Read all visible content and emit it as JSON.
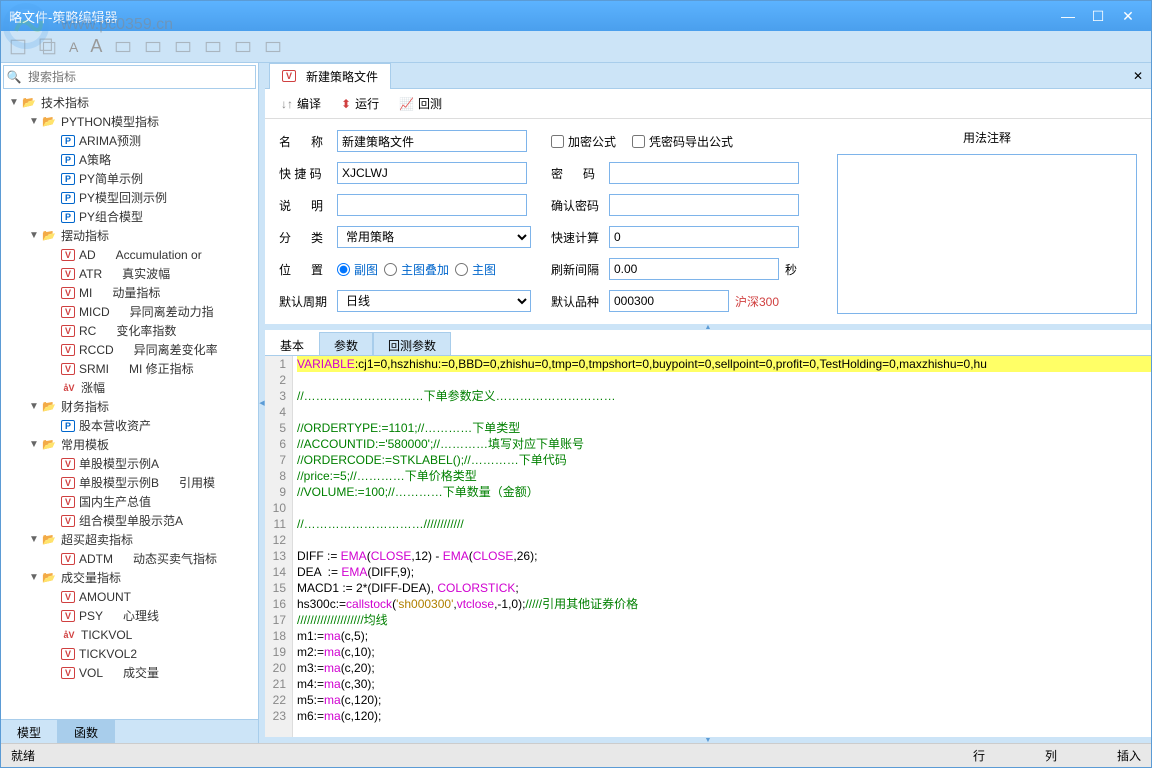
{
  "window": {
    "title": "略文件-策略编辑器",
    "watermark": "www.pc0359.cn",
    "watermark_brand": "河东软件园"
  },
  "search": {
    "placeholder": "搜索指标"
  },
  "tree": [
    {
      "level": 0,
      "arrow": "▼",
      "icon": "folder",
      "label": "技术指标"
    },
    {
      "level": 1,
      "arrow": "▼",
      "icon": "folder",
      "label": "PYTHON模型指标"
    },
    {
      "level": 2,
      "arrow": "",
      "icon": "p",
      "label": "ARIMA预测"
    },
    {
      "level": 2,
      "arrow": "",
      "icon": "p",
      "label": "A策略"
    },
    {
      "level": 2,
      "arrow": "",
      "icon": "p",
      "label": "PY简单示例"
    },
    {
      "level": 2,
      "arrow": "",
      "icon": "p",
      "label": "PY模型回测示例"
    },
    {
      "level": 2,
      "arrow": "",
      "icon": "p",
      "label": "PY组合模型"
    },
    {
      "level": 1,
      "arrow": "▼",
      "icon": "folder",
      "label": "摆动指标"
    },
    {
      "level": 2,
      "arrow": "",
      "icon": "v",
      "label": "AD",
      "extra": "Accumulation or"
    },
    {
      "level": 2,
      "arrow": "",
      "icon": "v",
      "label": "ATR",
      "extra": "真实波幅"
    },
    {
      "level": 2,
      "arrow": "",
      "icon": "v",
      "label": "MI",
      "extra": "动量指标"
    },
    {
      "level": 2,
      "arrow": "",
      "icon": "v",
      "label": "MICD",
      "extra": "异同离差动力指"
    },
    {
      "level": 2,
      "arrow": "",
      "icon": "v",
      "label": "RC",
      "extra": "变化率指数"
    },
    {
      "level": 2,
      "arrow": "",
      "icon": "v",
      "label": "RCCD",
      "extra": "异同离差变化率"
    },
    {
      "level": 2,
      "arrow": "",
      "icon": "v",
      "label": "SRMI",
      "extra": "MI 修正指标"
    },
    {
      "level": 2,
      "arrow": "",
      "icon": "av",
      "label": "涨幅"
    },
    {
      "level": 1,
      "arrow": "▼",
      "icon": "folder",
      "label": "财务指标"
    },
    {
      "level": 2,
      "arrow": "",
      "icon": "p",
      "label": "股本营收资产"
    },
    {
      "level": 1,
      "arrow": "▼",
      "icon": "folder",
      "label": "常用模板"
    },
    {
      "level": 2,
      "arrow": "",
      "icon": "v",
      "label": "单股模型示例A"
    },
    {
      "level": 2,
      "arrow": "",
      "icon": "v",
      "label": "单股模型示例B",
      "extra": "引用模"
    },
    {
      "level": 2,
      "arrow": "",
      "icon": "v",
      "label": "国内生产总值"
    },
    {
      "level": 2,
      "arrow": "",
      "icon": "v",
      "label": "组合模型单股示范A"
    },
    {
      "level": 1,
      "arrow": "▼",
      "icon": "folder",
      "label": "超买超卖指标"
    },
    {
      "level": 2,
      "arrow": "",
      "icon": "v",
      "label": "ADTM",
      "extra": "动态买卖气指标"
    },
    {
      "level": 1,
      "arrow": "▼",
      "icon": "folder",
      "label": "成交量指标"
    },
    {
      "level": 2,
      "arrow": "",
      "icon": "v",
      "label": "AMOUNT"
    },
    {
      "level": 2,
      "arrow": "",
      "icon": "v",
      "label": "PSY",
      "extra": "心理线"
    },
    {
      "level": 2,
      "arrow": "",
      "icon": "av",
      "label": "TICKVOL"
    },
    {
      "level": 2,
      "arrow": "",
      "icon": "v",
      "label": "TICKVOL2"
    },
    {
      "level": 2,
      "arrow": "",
      "icon": "v",
      "label": "VOL",
      "extra": "成交量"
    }
  ],
  "bottomTabs": {
    "model": "模型",
    "function": "函数"
  },
  "fileTab": {
    "name": "新建策略文件"
  },
  "actions": {
    "compile": "编译",
    "run": "运行",
    "backtest": "回测"
  },
  "form": {
    "name_label": "名　称",
    "name_value": "新建策略文件",
    "shortcut_label": "快 捷 码",
    "shortcut_value": "XJCLWJ",
    "desc_label": "说　明",
    "desc_value": "",
    "category_label": "分　类",
    "category_value": "常用策略",
    "position_label": "位　置",
    "period_label": "默认周期",
    "period_value": "日线",
    "encrypt": "加密公式",
    "export_pwd": "凭密码导出公式",
    "password_label": "密　码",
    "confirm_pwd_label": "确认密码",
    "fast_calc_label": "快速计算",
    "fast_calc_value": "0",
    "refresh_label": "刷新间隔",
    "refresh_value": "0.00",
    "refresh_unit": "秒",
    "default_symbol_label": "默认品种",
    "default_symbol_value": "000300",
    "default_symbol_name": "沪深300",
    "radio_sub": "副图",
    "radio_overlay": "主图叠加",
    "radio_main": "主图",
    "usage_label": "用法注释"
  },
  "codeTabs": {
    "basic": "基本",
    "params": "参数",
    "backtest_params": "回测参数"
  },
  "code": [
    {
      "n": 1,
      "hl": true,
      "html": "<span class='c-kw'>VARIABLE</span>:cj1=0,hszhishu:=0,BBD=0,zhishu=0,tmp=0,tmpshort=0,buypoint=0,sellpoint=0,profit=0,TestHolding=0,maxzhishu=0,hu"
    },
    {
      "n": 2,
      "html": ""
    },
    {
      "n": 3,
      "html": "<span class='c-comment'>//…………………………下单参数定义…………………………</span>"
    },
    {
      "n": 4,
      "html": ""
    },
    {
      "n": 5,
      "html": "<span class='c-comment'>//ORDERTYPE:=1101;//…………下单类型</span>"
    },
    {
      "n": 6,
      "html": "<span class='c-comment'>//ACCOUNTID:='580000';//…………填写对应下单账号</span>"
    },
    {
      "n": 7,
      "html": "<span class='c-comment'>//ORDERCODE:=STKLABEL();//…………下单代码</span>"
    },
    {
      "n": 8,
      "html": "<span class='c-comment'>//price:=5;//…………下单价格类型</span>"
    },
    {
      "n": 9,
      "html": "<span class='c-comment'>//VOLUME:=100;//…………下单数量（金额）</span>"
    },
    {
      "n": 10,
      "html": ""
    },
    {
      "n": 11,
      "html": "<span class='c-comment'>//…………………………////////////</span>"
    },
    {
      "n": 12,
      "html": ""
    },
    {
      "n": 13,
      "html": "DIFF := <span class='c-func'>EMA</span>(<span class='c-func'>CLOSE</span>,12) - <span class='c-func'>EMA</span>(<span class='c-func'>CLOSE</span>,26);"
    },
    {
      "n": 14,
      "html": "DEA  := <span class='c-func'>EMA</span>(DIFF,9);"
    },
    {
      "n": 15,
      "html": "MACD1 := 2*(DIFF-DEA), <span class='c-func'>COLORSTICK</span>;"
    },
    {
      "n": 16,
      "html": "hs300c:=<span class='c-func'>callstock</span>(<span class='c-str'>'sh000300'</span>,<span class='c-func'>vtclose</span>,-1,0);<span class='c-comment'>/////引用其他证券价格</span>"
    },
    {
      "n": 17,
      "html": "<span class='c-comment'>////////////////////均线</span>"
    },
    {
      "n": 18,
      "html": "m1:=<span class='c-func'>ma</span>(c,5);"
    },
    {
      "n": 19,
      "html": "m2:=<span class='c-func'>ma</span>(c,10);"
    },
    {
      "n": 20,
      "html": "m3:=<span class='c-func'>ma</span>(c,20);"
    },
    {
      "n": 21,
      "html": "m4:=<span class='c-func'>ma</span>(c,30);"
    },
    {
      "n": 22,
      "html": "m5:=<span class='c-func'>ma</span>(c,120);"
    },
    {
      "n": 23,
      "html": "m6:=<span class='c-func'>ma</span>(c,120);"
    }
  ],
  "status": {
    "ready": "就绪",
    "row": "行",
    "col": "列",
    "insert": "插入"
  }
}
